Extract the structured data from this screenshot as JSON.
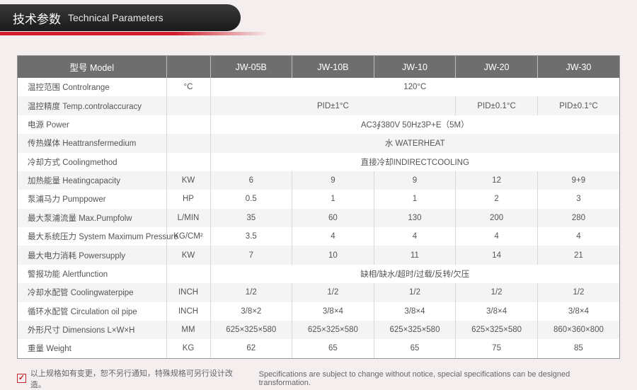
{
  "header": {
    "zh": "技术参数",
    "en": "Technical Parameters"
  },
  "colors": {
    "header_bg_dark": "#1a1a1a",
    "accent_red": "#d01c2a",
    "thead_bg": "#6f6e6f",
    "row_even": "#f4f4f4",
    "row_odd": "#ffffff",
    "border": "#d8d8d8",
    "page_bg": "#f5eeef"
  },
  "col_widths": {
    "label": 210,
    "unit": 62
  },
  "thead": [
    "型号 Model",
    "",
    "JW-05B",
    "JW-10B",
    "JW-10",
    "JW-20",
    "JW-30"
  ],
  "rows": [
    {
      "label": "温控范围 Controlrange",
      "unit": "°C",
      "span": {
        "text": "120°C",
        "cols": 5
      }
    },
    {
      "label": "温控精度 Temp.controlaccuracy",
      "unit": "",
      "cells": [
        {
          "text": "PID±1°C",
          "cols": 3
        },
        {
          "text": "PID±0.1°C",
          "cols": 1
        },
        {
          "text": "PID±0.1°C",
          "cols": 1
        }
      ]
    },
    {
      "label": "电源 Power",
      "unit": "",
      "span": {
        "text": "AC3∮380V 50Hz3P+E（5M）",
        "cols": 5
      }
    },
    {
      "label": "传热媒体 Heattransfermedium",
      "unit": "",
      "span": {
        "text": "水 WATERHEAT",
        "cols": 5
      }
    },
    {
      "label": "冷却方式 Coolingmethod",
      "unit": "",
      "span": {
        "text": "直接冷却INDIRECTCOOLING",
        "cols": 5
      }
    },
    {
      "label": "加热能量 Heatingcapacity",
      "unit": "KW",
      "values": [
        "6",
        "9",
        "9",
        "12",
        "9+9"
      ]
    },
    {
      "label": "泵浦马力 Pumppower",
      "unit": "HP",
      "values": [
        "0.5",
        "1",
        "1",
        "2",
        "3"
      ]
    },
    {
      "label": "最大泵浦流量 Max.Pumpfolw",
      "unit": "L/MIN",
      "values": [
        "35",
        "60",
        "130",
        "200",
        "280"
      ]
    },
    {
      "label": "最大系统压力 System Maximum Pressure",
      "unit": "KG/CM²",
      "values": [
        "3.5",
        "4",
        "4",
        "4",
        "4"
      ]
    },
    {
      "label": "最大电力消耗 Powersupply",
      "unit": "KW",
      "values": [
        "7",
        "10",
        "11",
        "14",
        "21"
      ]
    },
    {
      "label": "警报功能 Alertfunction",
      "unit": "",
      "span": {
        "text": "缺相/缺水/超时/过载/反转/欠压",
        "cols": 5
      }
    },
    {
      "label": "冷却水配管 Coolingwaterpipe",
      "unit": "INCH",
      "values": [
        "1/2",
        "1/2",
        "1/2",
        "1/2",
        "1/2"
      ]
    },
    {
      "label": "循环水配管 Circulation oil pipe",
      "unit": "INCH",
      "values": [
        "3/8×2",
        "3/8×4",
        "3/8×4",
        "3/8×4",
        "3/8×4"
      ]
    },
    {
      "label": "外形尺寸 Dimensions L×W×H",
      "unit": "MM",
      "values": [
        "625×325×580",
        "625×325×580",
        "625×325×580",
        "625×325×580",
        "860×360×800"
      ]
    },
    {
      "label": "重量 Weight",
      "unit": "KG",
      "values": [
        "62",
        "65",
        "65",
        "75",
        "85"
      ]
    }
  ],
  "footnote": {
    "zh": "以上规格如有变更，恕不另行通知，特殊规格可另行设计改造。",
    "en": "Specifications are subject to change without notice, special specifications can be designed transformation."
  }
}
